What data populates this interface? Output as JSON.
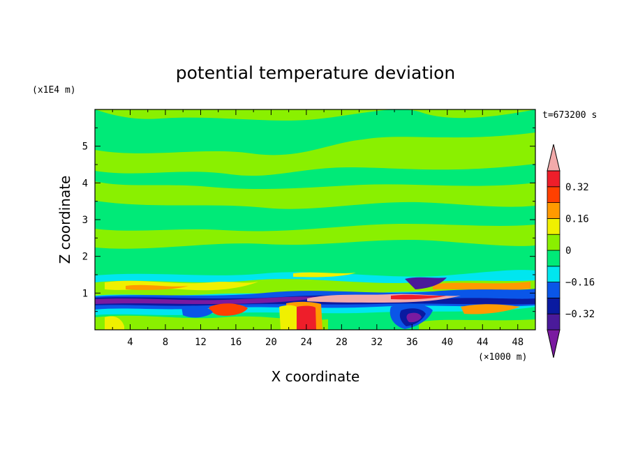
{
  "chart_data": {
    "type": "heatmap",
    "title": "potential temperature deviation",
    "xlabel": "X coordinate",
    "ylabel": "Z coordinate",
    "x_unit": "(×1000 m)",
    "y_unit": "(x1E4 m)",
    "time_label": "t=673200 s",
    "xlim": [
      0,
      50
    ],
    "ylim": [
      0,
      6
    ],
    "xticks": [
      4,
      8,
      12,
      16,
      20,
      24,
      28,
      32,
      36,
      40,
      44,
      48
    ],
    "yticks": [
      1,
      2,
      3,
      4,
      5
    ],
    "colorbar": {
      "levels": [
        -0.48,
        -0.4,
        -0.32,
        -0.24,
        -0.16,
        -0.08,
        0,
        0.08,
        0.16,
        0.24,
        0.32,
        0.4
      ],
      "tick_labels": [
        "0.32",
        "0.16",
        "0",
        "−0.16",
        "−0.32"
      ],
      "tick_values": [
        0.32,
        0.16,
        0,
        -0.16,
        -0.32
      ],
      "colors": [
        "#7a1aa0",
        "#4a1a9a",
        "#0a1aa0",
        "#0a56e8",
        "#00e6ef",
        "#00ea78",
        "#8af000",
        "#f0f000",
        "#ff9a00",
        "#ff4000",
        "#ee1e2a",
        "#f2aaaa"
      ],
      "extend": "both"
    }
  }
}
